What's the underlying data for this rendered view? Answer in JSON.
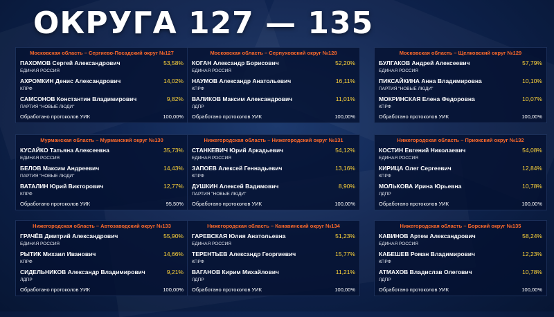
{
  "title": "ОКРУГА 127 — 135",
  "processed_label": "Обработано протоколов УИК",
  "panels": [
    {
      "region": "Московская область – Сергиево-Посадский округ №127",
      "candidates": [
        {
          "name": "ПАХОМОВ Сергей Александрович",
          "pct": "53,58%",
          "party": "ЕДИНАЯ РОССИЯ"
        },
        {
          "name": "АХРОМКИН Денис Александрович",
          "pct": "14,02%",
          "party": "КПРФ"
        },
        {
          "name": "САМСОНОВ Константин Владимирович",
          "pct": "9,82%",
          "party": "ПАРТИЯ \"НОВЫЕ ЛЮДИ\""
        }
      ],
      "processed": "100,00%"
    },
    {
      "region": "Московская область – Серпуховский округ №128",
      "candidates": [
        {
          "name": "КОГАН Александр Борисович",
          "pct": "52,20%",
          "party": "ЕДИНАЯ РОССИЯ"
        },
        {
          "name": "НАУМОВ Александр Анатольевич",
          "pct": "16,11%",
          "party": "КПРФ"
        },
        {
          "name": "ВАЛИКОВ Максим Александрович",
          "pct": "11,01%",
          "party": "ЛДПР"
        }
      ],
      "processed": "100,00%"
    },
    {
      "region": "Московская область – Щелковский округ №129",
      "candidates": [
        {
          "name": "БУЛГАКОВ Андрей Алексеевич",
          "pct": "57,79%",
          "party": "ЕДИНАЯ РОССИЯ"
        },
        {
          "name": "ПИКСАЙКИНА Анна Владимировна",
          "pct": "10,10%",
          "party": "ПАРТИЯ \"НОВЫЕ ЛЮДИ\""
        },
        {
          "name": "МОКРИНСКАЯ Елена Федоровна",
          "pct": "10,07%",
          "party": "КПРФ"
        }
      ],
      "processed": "100,00%"
    },
    {
      "region": "Мурманская область – Мурманский округ №130",
      "candidates": [
        {
          "name": "КУСАЙКО Татьяна Алексеевна",
          "pct": "35,73%",
          "party": "ЕДИНАЯ РОССИЯ"
        },
        {
          "name": "БЕЛОВ Максим Андреевич",
          "pct": "14,43%",
          "party": "ПАРТИЯ \"НОВЫЕ ЛЮДИ\""
        },
        {
          "name": "ВАТАЛИН Юрий Викторович",
          "pct": "12,77%",
          "party": "КПРФ"
        }
      ],
      "processed": "95,50%"
    },
    {
      "region": "Нижегородская область – Нижегородский округ №131",
      "candidates": [
        {
          "name": "СТАНКЕВИЧ Юрий Аркадьевич",
          "pct": "54,12%",
          "party": "ЕДИНАЯ РОССИЯ"
        },
        {
          "name": "ЗАПОЕВ Алексей Геннадьевич",
          "pct": "13,16%",
          "party": "КПРФ"
        },
        {
          "name": "ДУШКИН Алексей Вадимович",
          "pct": "8,90%",
          "party": "ПАРТИЯ \"НОВЫЕ ЛЮДИ\""
        }
      ],
      "processed": "100,00%"
    },
    {
      "region": "Нижегородская область – Приокский округ №132",
      "candidates": [
        {
          "name": "КОСТИН Евгений Николаевич",
          "pct": "54,08%",
          "party": "ЕДИНАЯ РОССИЯ"
        },
        {
          "name": "КИРИЦА Олег Сергеевич",
          "pct": "12,84%",
          "party": "КПРФ"
        },
        {
          "name": "МОЛЬКОВА Ирина Юрьевна",
          "pct": "10,78%",
          "party": "ЛДПР"
        }
      ],
      "processed": "100,00%"
    },
    {
      "region": "Нижегородская область – Автозаводский округ №133",
      "candidates": [
        {
          "name": "ГРАЧЁВ Дмитрий Александрович",
          "pct": "55,90%",
          "party": "ЕДИНАЯ РОССИЯ"
        },
        {
          "name": "РЫТИК Михаил Иванович",
          "pct": "14,66%",
          "party": "КПРФ"
        },
        {
          "name": "СИДЕЛЬНИКОВ Александр Владимирович",
          "pct": "9,21%",
          "party": "ЛДПР"
        }
      ],
      "processed": "100,00%"
    },
    {
      "region": "Нижегородская область – Канавинский округ №134",
      "candidates": [
        {
          "name": "ГАРЕВСКАЯ Юлия Анатольевна",
          "pct": "51,23%",
          "party": "ЕДИНАЯ РОССИЯ"
        },
        {
          "name": "ТЕРЕНТЬЕВ Александр Георгиевич",
          "pct": "15,77%",
          "party": "КПРФ"
        },
        {
          "name": "ВАГАНОВ Кирим Михайлович",
          "pct": "11,21%",
          "party": "ЛДПР"
        }
      ],
      "processed": "100,00%"
    },
    {
      "region": "Нижегородская область – Борский округ №135",
      "candidates": [
        {
          "name": "КАВИНОВ Артем Александрович",
          "pct": "58,24%",
          "party": "ЕДИНАЯ РОССИЯ"
        },
        {
          "name": "КАБЕШЕВ Роман Владимирович",
          "pct": "12,23%",
          "party": "КПРФ"
        },
        {
          "name": "АТМАХОВ Владислав Олегович",
          "pct": "10,78%",
          "party": "ЛДПР"
        }
      ],
      "processed": "100,00%"
    }
  ]
}
